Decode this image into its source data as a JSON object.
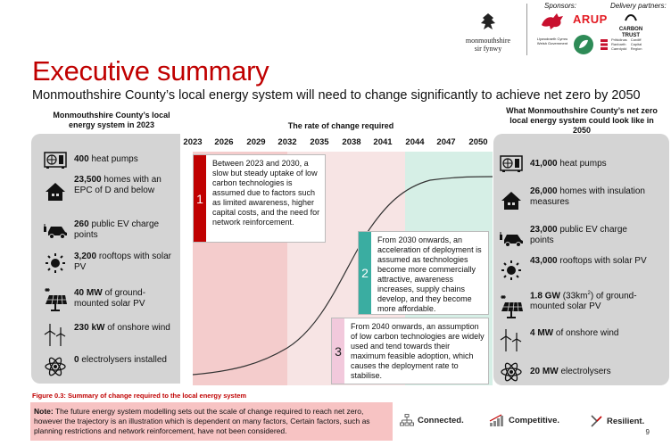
{
  "header": {
    "sponsors_label": "Sponsors:",
    "delivery_label": "Delivery partners:",
    "council_name_line1": "monmouthshire",
    "council_name_line2": "sir fynwy",
    "wg_line1": "Llywodraeth Cymru",
    "wg_line2": "Welsh Government",
    "arup": "ARUP",
    "carbon_trust_line1": "CARBON",
    "carbon_trust_line2": "TRUST",
    "partner_small_line1": "Prifddinas",
    "partner_small_line2": "Ranbarth",
    "partner_small_line3": "Caerdydd",
    "partner_small2_line1": "Cardiff",
    "partner_small2_line2": "Capital",
    "partner_small2_line3": "Region"
  },
  "title": "Executive summary",
  "subtitle": "Monmouthshire County’s local energy system will need to change significantly to achieve net zero by 2050",
  "left_heading": "Monmouthshire County’s local energy system in 2023",
  "mid_heading": "The rate of change required",
  "right_heading": "What Monmouthshire County’s net zero local energy system could look like in 2050",
  "years": [
    "2023",
    "2026",
    "2029",
    "2032",
    "2035",
    "2038",
    "2041",
    "2044",
    "2047",
    "2050"
  ],
  "left_items": [
    {
      "icon": "heat-pump-icon",
      "value": "400",
      "text": "heat pumps"
    },
    {
      "icon": "house-icon",
      "value": "23,500",
      "text": "homes with an EPC of D and below"
    },
    {
      "icon": "ev-car-icon",
      "value": "260",
      "text": "public EV charge points"
    },
    {
      "icon": "sun-icon",
      "value": "3,200",
      "text": "rooftops with solar PV"
    },
    {
      "icon": "solar-panel-icon",
      "value": "40 MW",
      "text": "of ground-mounted solar PV"
    },
    {
      "icon": "wind-turbine-icon",
      "value": "230 kW",
      "text": "of onshore wind"
    },
    {
      "icon": "atom-icon",
      "value": "0",
      "text": "electrolysers installed"
    }
  ],
  "right_items": [
    {
      "icon": "heat-pump-icon",
      "value": "41,000",
      "text": "heat pumps"
    },
    {
      "icon": "house-icon",
      "value": "26,000",
      "text": "homes with insulation measures"
    },
    {
      "icon": "ev-car-icon",
      "value": "23,000",
      "text": "public EV charge points"
    },
    {
      "icon": "sun-icon",
      "value": "43,000",
      "text": "rooftops with solar PV"
    },
    {
      "icon": "solar-panel-icon",
      "value": "1.8 GW",
      "value_extra": "(33km",
      "sup": "2",
      "text_after": ")",
      "text": "of ground-mounted solar PV"
    },
    {
      "icon": "wind-turbine-icon",
      "value": "4 MW",
      "text": "of onshore wind"
    },
    {
      "icon": "atom-icon",
      "value": "20 MW",
      "text": "electrolysers"
    }
  ],
  "callouts": [
    {
      "num": "1",
      "color": "#c00000",
      "text": "Between 2023 and 2030, a slow but steady uptake of low carbon technologies is assumed due to factors such as limited awareness, higher capital costs, and the need for network reinforcement."
    },
    {
      "num": "2",
      "color": "#3aada1",
      "text": "From 2030 onwards, an acceleration of deployment is assumed as technologies become more commercially attractive, awareness increases, supply chains develop, and they become more affordable."
    },
    {
      "num": "3",
      "color": "#f2c9dc",
      "text": "From 2040 onwards, an assumption of low carbon technologies are widely used and tend towards their maximum feasible adoption, which causes the deployment rate to stabilise."
    }
  ],
  "figure_caption": "Figure 0.3: Summary of change required to the local energy system",
  "note_label": "Note:",
  "note_text": "The future energy system modelling sets out the scale of change required to reach net zero, however the trajectory is an illustration which is dependent on many factors, Certain factors, such as planning restrictions and network reinforcement, have not been considered.",
  "tags": [
    "Connected.",
    "Competitive.",
    "Resilient."
  ],
  "page_number": "9",
  "colors": {
    "accent_red": "#c00000",
    "teal": "#3aada1",
    "pink_band": "#f4cccc",
    "green_band": "#d6efe6"
  }
}
